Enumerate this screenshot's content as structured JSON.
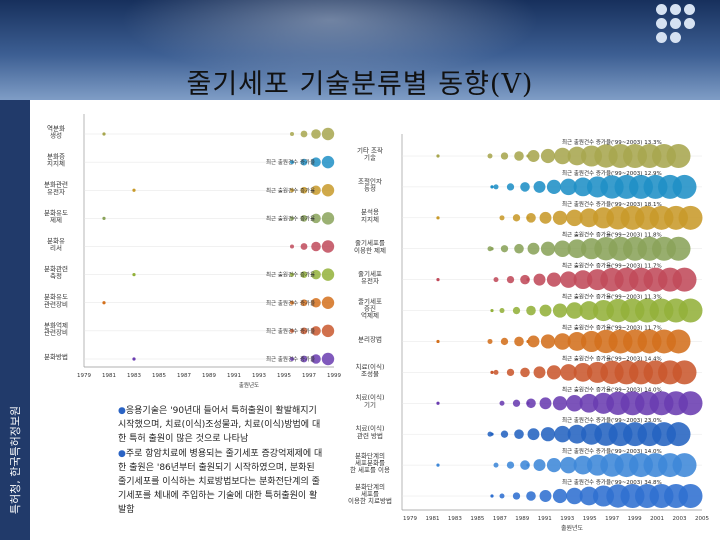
{
  "slide": {
    "title": "줄기세포 기술분류별 동향(V)",
    "side_label": "특허청, 한국특허정보원"
  },
  "left_chart": {
    "xlabel": "출원년도",
    "xticks": [
      "1979",
      "1981",
      "1983",
      "1985",
      "1987",
      "1989",
      "1991",
      "1993",
      "1995",
      "1997",
      "1999"
    ],
    "rows": [
      {
        "label": "역분화/생성",
        "note": ""
      },
      {
        "label": "분화증/지지체",
        "note": "최근 출원건수 증가율"
      },
      {
        "label": "분화관련/유전자",
        "note": "최근 출원건수 증가율"
      },
      {
        "label": "분화유도/제제",
        "note": "최근 출원건수 증가율"
      },
      {
        "label": "분화유/리서",
        "note": ""
      },
      {
        "label": "분화관련/측정",
        "note": "최근 출원건수 증가율"
      },
      {
        "label": "분화유도/관련장비",
        "note": "최근 출원건수 증가율"
      },
      {
        "label": "분화억제/관련장비",
        "note": "최근 출원건수 증가율"
      },
      {
        "label": "분화방법",
        "note": "최근 출원건수 증가율"
      }
    ]
  },
  "right_chart": {
    "xlabel": "출원년도",
    "xticks": [
      "1979",
      "1981",
      "1983",
      "1985",
      "1987",
      "1989",
      "1991",
      "1993",
      "1995",
      "1997",
      "1999",
      "2001",
      "2003",
      "2005"
    ],
    "rows": [
      {
        "label": "기타 조작/기술",
        "note": "최근 출원건수 증가율('99~2003) 13.3%"
      },
      {
        "label": "조절인자/동정",
        "note": "최근 출원건수 증가율('99~2003) 12.9%"
      },
      {
        "label": "분석용/지지체",
        "note": "최근 출원건수 증가율('99~2003) 18.1%"
      },
      {
        "label": "줄기세포를/이용한 제제",
        "note": "최근 출원건수 증가율('99~2003) 11.8%"
      },
      {
        "label": "줄기세포/유전자",
        "note": "최근 출원건수 증가율('99~2003) 11.7%"
      },
      {
        "label": "줄기세포/증진/억제제",
        "note": "최근 출원건수 증가율('99~2003) 11.3%"
      },
      {
        "label": "분리장법",
        "note": "최근 출원건수 증가율('99~2003) 11.7%"
      },
      {
        "label": "치료(이식)/조성물",
        "note": "최근 출원건수 증가율('99~2003) 14.4%"
      },
      {
        "label": "치료(이식)/기기",
        "note": "최근 출원건수 증가율('99~2003) 14.0%"
      },
      {
        "label": "치료(이식)/관련 방법",
        "note": "최근 출원건수 증가율('99~2003) 23.0%"
      },
      {
        "label": "분화단계의/세포분화를/한 세포를 이용",
        "note": "최근 출원건수 증가율('99~2003) 14.0%"
      },
      {
        "label": "분화단계의/세포를/이용한 치료방법",
        "note": "최근 출원건수 증가율('99~2003) 34.8%"
      }
    ]
  },
  "notes": {
    "bullet1": "응용기술은 '90년대 들어서 특허출원이 활발해지기 시작했으며, 치료(이식)조성물과, 치료(이식)방법에 대한 특허 출원이 많은 것으로 나타남",
    "bullet2": "주로 항암치료에 병용되는 줄기세포 증강억제제에 대한 출원은 '86년부터 출원되기 시작하였으며, 분화된 줄기세포를 이식하는 치료방법보다는 분화전단계의 줄기세포를 체내에 주입하는 기술에 대한 특허출원이 활발함"
  },
  "colors": {
    "header_dark": "#17305c",
    "side_bar": "#213a6a",
    "bubble_palette": [
      "#a7a64e",
      "#1f8fc6",
      "#c89a2a",
      "#8aa35a",
      "#c04a5a",
      "#93b13a",
      "#d3701c",
      "#c9582e",
      "#6a3cb0",
      "#2463c0",
      "#3e88d8",
      "#2f6fd0"
    ]
  }
}
